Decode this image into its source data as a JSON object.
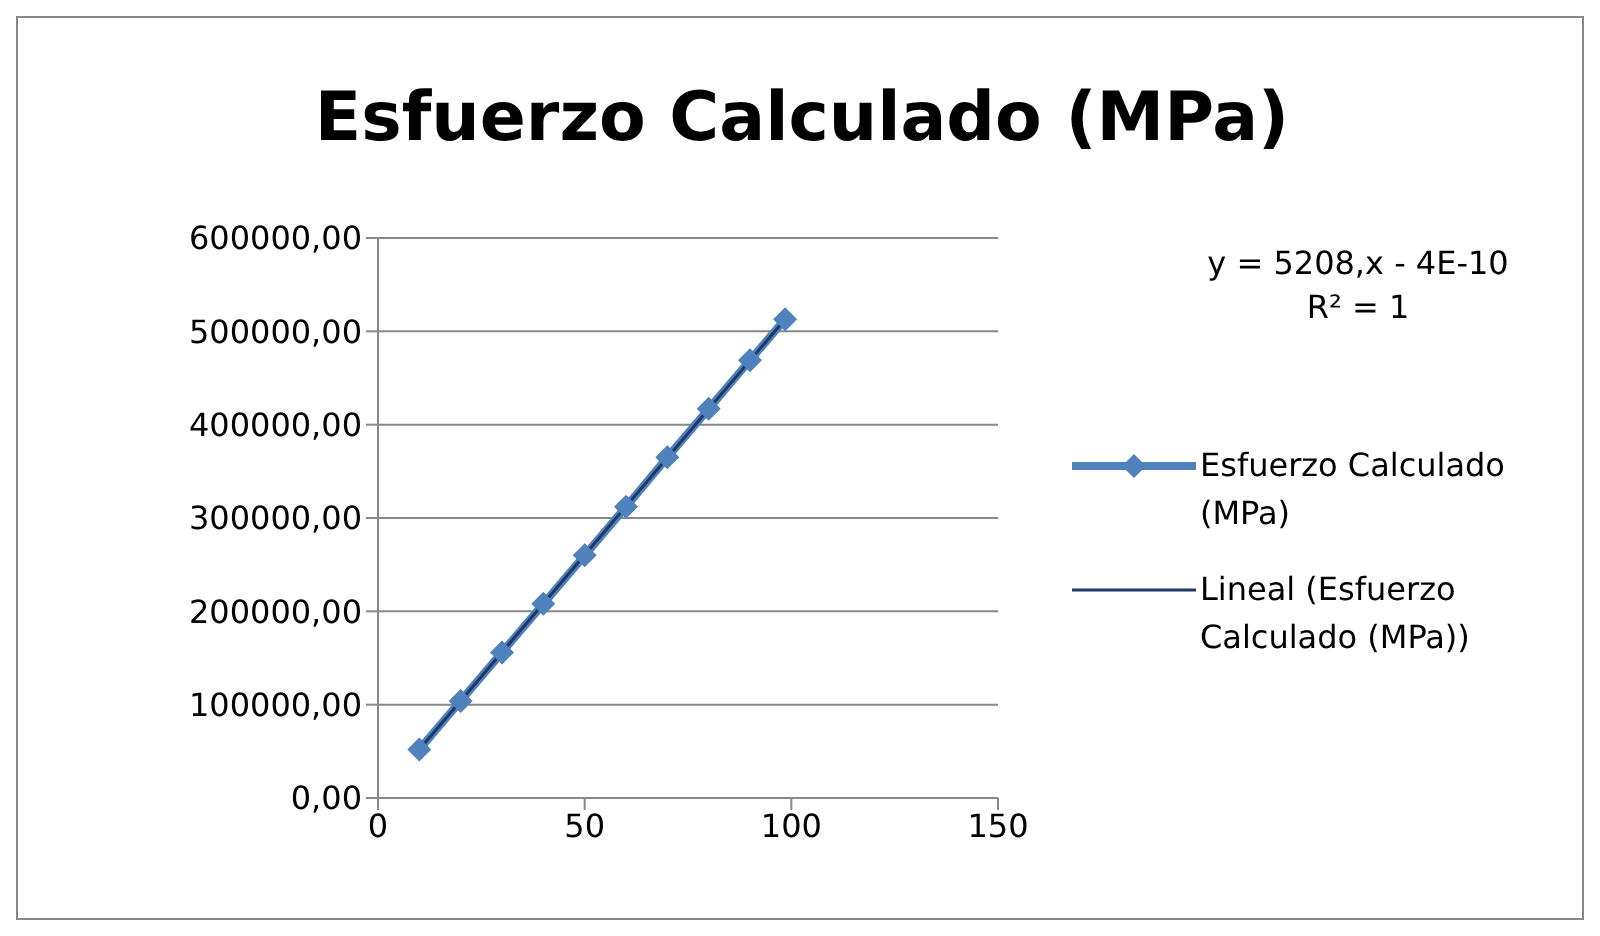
{
  "chart_data": {
    "type": "line",
    "title": "Esfuerzo Calculado (MPa)",
    "series": [
      {
        "name": "Esfuerzo Calculado (MPa)",
        "color": "#4f81bd",
        "marker": "diamond",
        "x": [
          10,
          20,
          30,
          40,
          50,
          60,
          70,
          80,
          90,
          98.5
        ],
        "values": [
          52000,
          104000,
          156000,
          208000,
          260000,
          312000,
          365000,
          417000,
          469000,
          513000
        ]
      },
      {
        "name": "Lineal (Esfuerzo Calculado (MPa))",
        "type": "line",
        "color": "#1f3864",
        "marker": "none",
        "x": [
          10,
          98.5
        ],
        "values": [
          52000,
          513000
        ]
      }
    ],
    "xlim": [
      0,
      150
    ],
    "xticks": [
      0,
      50,
      100,
      150
    ],
    "ylim": [
      0,
      600000
    ],
    "yticks": [
      {
        "value": 0,
        "label": "0,00"
      },
      {
        "value": 100000,
        "label": "100000,00"
      },
      {
        "value": 200000,
        "label": "200000,00"
      },
      {
        "value": 300000,
        "label": "300000,00"
      },
      {
        "value": 400000,
        "label": "400000,00"
      },
      {
        "value": 500000,
        "label": "500000,00"
      },
      {
        "value": 600000,
        "label": "600000,00"
      }
    ],
    "grid": "y",
    "legend": "right",
    "annotations": [
      "y = 5208,x - 4E-10",
      "R² = 1"
    ]
  }
}
